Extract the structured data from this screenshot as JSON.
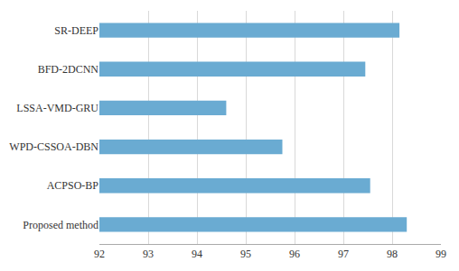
{
  "chart_data": {
    "type": "bar",
    "orientation": "horizontal",
    "categories": [
      "SR-DEEP",
      "BFD-2DCNN",
      "LSSA-VMD-GRU",
      "WPD-CSSOA-DBN",
      "ACPSO-BP",
      "Proposed method"
    ],
    "values": [
      98.15,
      97.45,
      94.6,
      95.75,
      97.55,
      98.3
    ],
    "color": "#6AABD2",
    "xlim": [
      92,
      99
    ],
    "xticks": [
      92,
      93,
      94,
      95,
      96,
      97,
      98,
      99
    ],
    "grid": true
  }
}
